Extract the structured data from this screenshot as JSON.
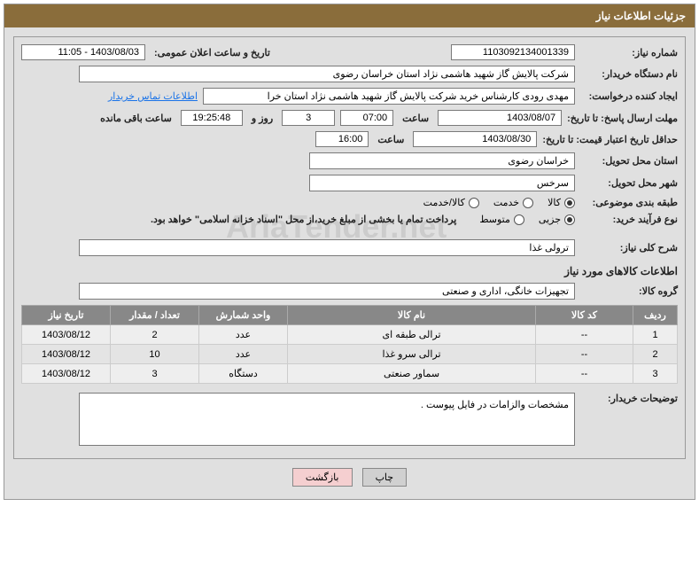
{
  "header": {
    "title": "جزئیات اطلاعات نیاز"
  },
  "fields": {
    "req_no_label": "شماره نیاز:",
    "req_no": "1103092134001339",
    "announce_label": "تاریخ و ساعت اعلان عمومی:",
    "announce": "1403/08/03 - 11:05",
    "buyer_label": "نام دستگاه خریدار:",
    "buyer": "شرکت پالایش گاز شهید هاشمی نژاد   استان خراسان رضوی",
    "creator_label": "ایجاد کننده درخواست:",
    "creator": "مهدی رودی کارشناس خرید شرکت پالایش گاز شهید هاشمی نژاد   استان خرا",
    "contact_link": "اطلاعات تماس خریدار",
    "deadline_label": "مهلت ارسال پاسخ: تا تاریخ:",
    "deadline_date": "1403/08/07",
    "time_label": "ساعت",
    "deadline_time": "07:00",
    "days": "3",
    "days_label": "روز و",
    "countdown": "19:25:48",
    "remain_label": "ساعت باقی مانده",
    "validity_label": "حداقل تاریخ اعتبار قیمت: تا تاریخ:",
    "validity_date": "1403/08/30",
    "validity_time": "16:00",
    "delivery_prov_label": "استان محل تحویل:",
    "delivery_prov": "خراسان رضوی",
    "delivery_city_label": "شهر محل تحویل:",
    "delivery_city": "سرخس",
    "category_label": "طبقه بندی موضوعی:",
    "cat_goods": "کالا",
    "cat_service": "خدمت",
    "cat_both": "کالا/خدمت",
    "process_label": "نوع فرآیند خرید:",
    "proc_minor": "جزیی",
    "proc_mid": "متوسط",
    "payment_note": "پرداخت تمام یا بخشی از مبلغ خرید،از محل \"اسناد خزانه اسلامی\" خواهد بود.",
    "summary_label": "شرح کلی نیاز:",
    "summary": "ترولی غذا",
    "goods_info_title": "اطلاعات کالاهای مورد نیاز",
    "group_label": "گروه کالا:",
    "group": "تجهیزات خانگی، اداری و صنعتی",
    "notes_label": "توضیحات خریدار:",
    "notes": "مشخصات والزامات در  فایل پیوست ."
  },
  "table": {
    "headers": {
      "row": "ردیف",
      "code": "کد کالا",
      "name": "نام کالا",
      "unit": "واحد شمارش",
      "qty": "تعداد / مقدار",
      "date": "تاریخ نیاز"
    },
    "rows": [
      {
        "row": "1",
        "code": "--",
        "name": "ترالی طبقه ای",
        "unit": "عدد",
        "qty": "2",
        "date": "1403/08/12"
      },
      {
        "row": "2",
        "code": "--",
        "name": "ترالی سرو غذا",
        "unit": "عدد",
        "qty": "10",
        "date": "1403/08/12"
      },
      {
        "row": "3",
        "code": "--",
        "name": "سماور صنعتی",
        "unit": "دستگاه",
        "qty": "3",
        "date": "1403/08/12"
      }
    ]
  },
  "buttons": {
    "print": "چاپ",
    "back": "بازگشت"
  },
  "watermark": "AriaTender.net"
}
